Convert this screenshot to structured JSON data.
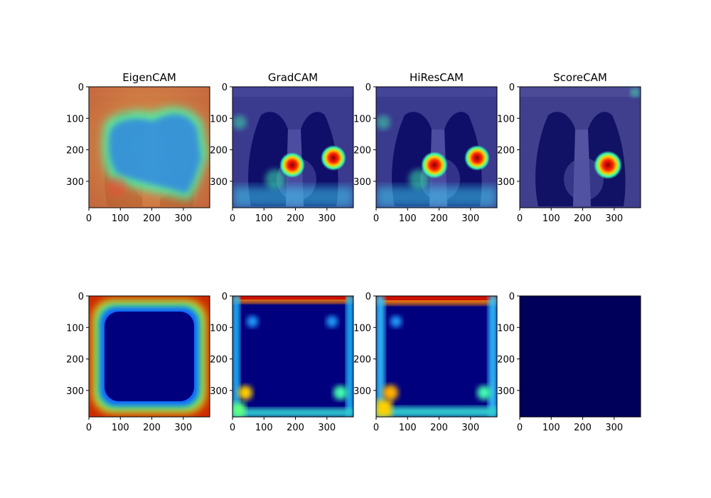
{
  "chart_data": {
    "type": "heatmap",
    "layout": "2x4 grid of image panels",
    "colormap": "jet",
    "axis_ticks": {
      "x": [
        0,
        100,
        200,
        300
      ],
      "y": [
        0,
        100,
        200,
        300
      ],
      "xlim": [
        0,
        384
      ],
      "ylim": [
        384,
        0
      ]
    },
    "rows": [
      {
        "row": 1,
        "description": "CAM overlay on chest X-ray",
        "panels": [
          {
            "title": "EigenCAM",
            "style": "overlay-eigen"
          },
          {
            "title": "GradCAM",
            "style": "overlay-grad"
          },
          {
            "title": "HiResCAM",
            "style": "overlay-hires"
          },
          {
            "title": "ScoreCAM",
            "style": "overlay-score"
          }
        ]
      },
      {
        "row": 2,
        "description": "raw CAM heatmap",
        "panels": [
          {
            "title": "",
            "style": "heat-eigen"
          },
          {
            "title": "",
            "style": "heat-grad"
          },
          {
            "title": "",
            "style": "heat-hires"
          },
          {
            "title": "",
            "style": "heat-score"
          }
        ]
      }
    ]
  },
  "colors": {
    "jet_low": "#00007f",
    "jet_mid": "#00ff80",
    "jet_high": "#ff2000"
  }
}
